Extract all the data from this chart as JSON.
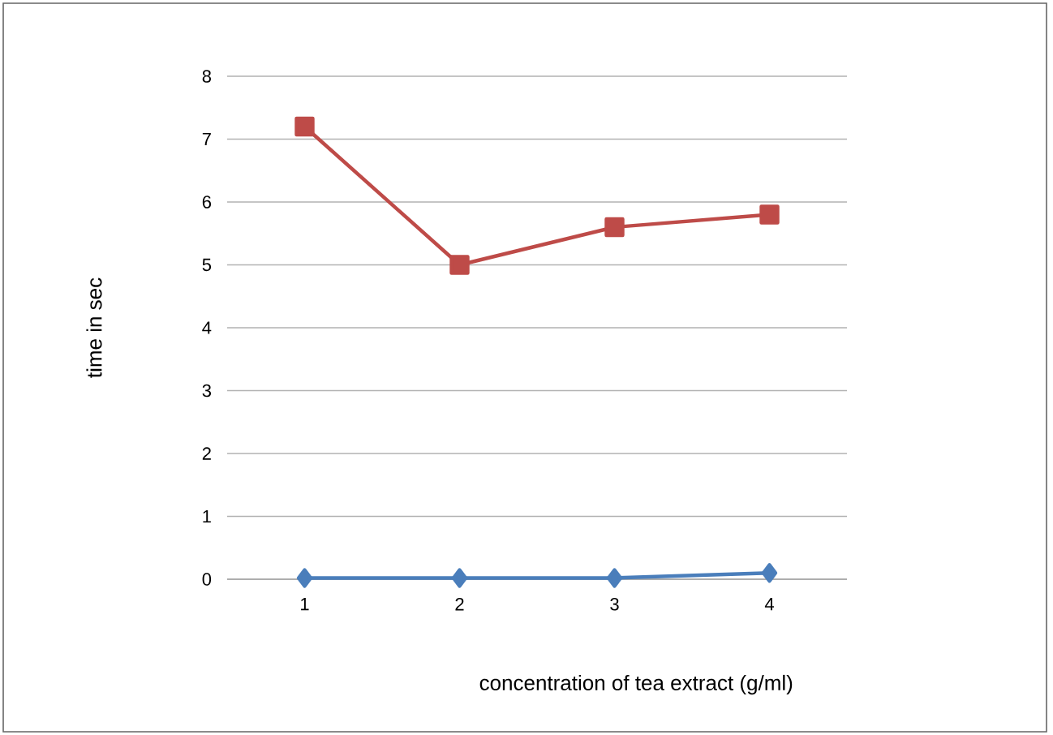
{
  "chart_data": {
    "type": "line",
    "xlabel": "concentration of tea extract (g/ml)",
    "ylabel": "time in sec",
    "categories": [
      "1",
      "2",
      "3",
      "4"
    ],
    "series": [
      {
        "color": "#4a7ebb",
        "marker": "diamond",
        "values": [
          0.02,
          0.02,
          0.02,
          0.1
        ]
      },
      {
        "color": "#be4b48",
        "marker": "square",
        "values": [
          7.2,
          5.0,
          5.6,
          5.8
        ]
      }
    ],
    "ylim": [
      0,
      8
    ],
    "yticks": [
      0,
      1,
      2,
      3,
      4,
      5,
      6,
      7,
      8
    ],
    "grid": "y",
    "line_style": "solid"
  }
}
